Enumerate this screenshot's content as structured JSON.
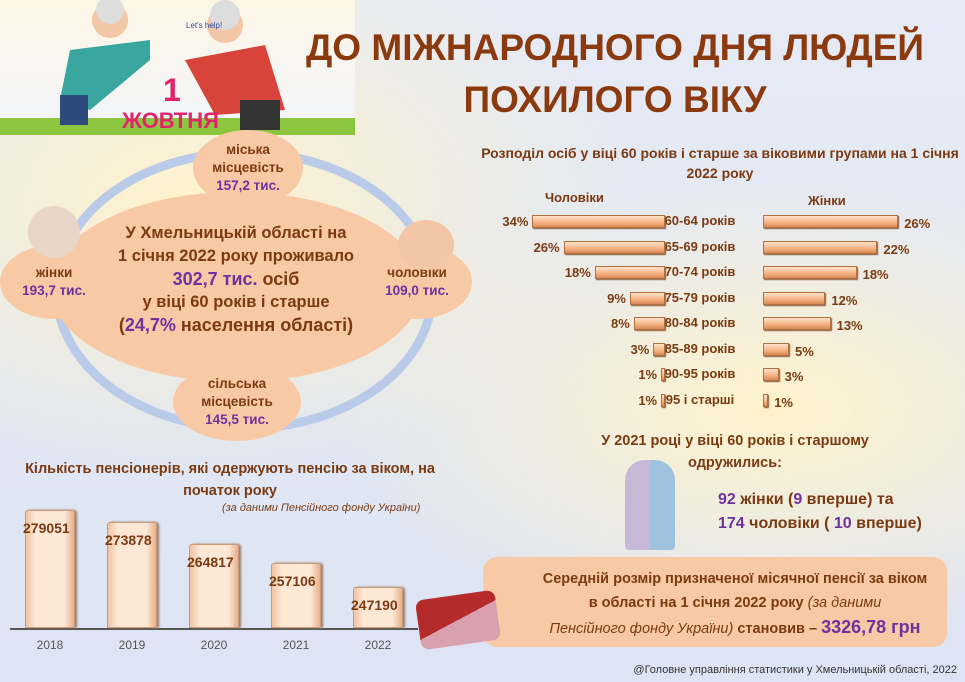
{
  "header": {
    "title_line1": "ДО МІЖНАРОДНОГО ДНЯ ЛЮДЕЙ",
    "title_line2": "ПОХИЛОГО ВІКУ",
    "banner_day": "1",
    "banner_month": "ЖОВТНЯ",
    "logo_text": "Let's help!"
  },
  "population": {
    "center_line1": "У Хмельницькій області на",
    "center_line2": "1 січня 2022 року проживало",
    "center_value": "302,7 тис.",
    "center_unit": " осіб",
    "center_line4": "у віці 60 років і старше",
    "center_open": "(",
    "center_pct": "24,7%",
    "center_close": " населення області)",
    "urban_label": "міська місцевість",
    "urban_value": "157,2 тис.",
    "women_label": "жінки",
    "women_value": "193,7 тис.",
    "men_label": "чоловіки",
    "men_value": "109,0 тис.",
    "rural_label": "сільська місцевість",
    "rural_value": "145,5 тис."
  },
  "marriage": {
    "title": "У 2021 році у віці 60 років і старшому одружились:",
    "women_count": "92",
    "women_text": " жінки (",
    "women_first": "9",
    "women_tail": " вперше) та",
    "men_count": "174",
    "men_text": " чоловіки ( ",
    "men_first": "10",
    "men_tail": " вперше)"
  },
  "pension": {
    "line1": "Середній розмір призначеної місячної пенсії за віком",
    "line2": "в області на 1 січня 2022 року ",
    "source1": "(за даними",
    "source2": "Пенсійного фонду України)",
    "verb": " становив – ",
    "value": "3326,78 грн"
  },
  "footer": "@Головне управління статистики у Хмельницькій області, 2022",
  "colors": {
    "title": "#8b3a0f",
    "highlight": "#7030a0",
    "bubble": "#f8c9a5",
    "ring": "#b9cbe9"
  },
  "chart_data": [
    {
      "type": "bar",
      "orientation": "horizontal",
      "title": "Розподіл осіб у віці 60 років і старше за віковими групами на 1 січня 2022 року",
      "categories": [
        "60-64 років",
        "65-69 років",
        "70-74 років",
        "75-79 років",
        "80-84 років",
        "85-89 років",
        "90-95 років",
        "95 і старші"
      ],
      "series": [
        {
          "name": "Чоловіки",
          "values": [
            34,
            26,
            18,
            9,
            8,
            3,
            1,
            1
          ],
          "labels": [
            "34%",
            "26%",
            "18%",
            "9%",
            "8%",
            "3%",
            "1%",
            "1%"
          ]
        },
        {
          "name": "Жінки",
          "values": [
            26,
            22,
            18,
            12,
            13,
            5,
            3,
            1
          ],
          "labels": [
            "26%",
            "22%",
            "18%",
            "12%",
            "13%",
            "5%",
            "3%",
            "1%"
          ]
        }
      ]
    },
    {
      "type": "bar",
      "title": "Кількість пенсіонерів, які одержують пенсію за віком, на початок року",
      "subtitle": "(за даними Пенсійного фонду України)",
      "categories": [
        "2018",
        "2019",
        "2020",
        "2021",
        "2022"
      ],
      "values": [
        279051,
        273878,
        264817,
        257106,
        247190
      ],
      "labels": [
        "279051",
        "273878",
        "264817",
        "257106",
        "247190"
      ],
      "ylim": [
        230000,
        285000
      ]
    }
  ]
}
